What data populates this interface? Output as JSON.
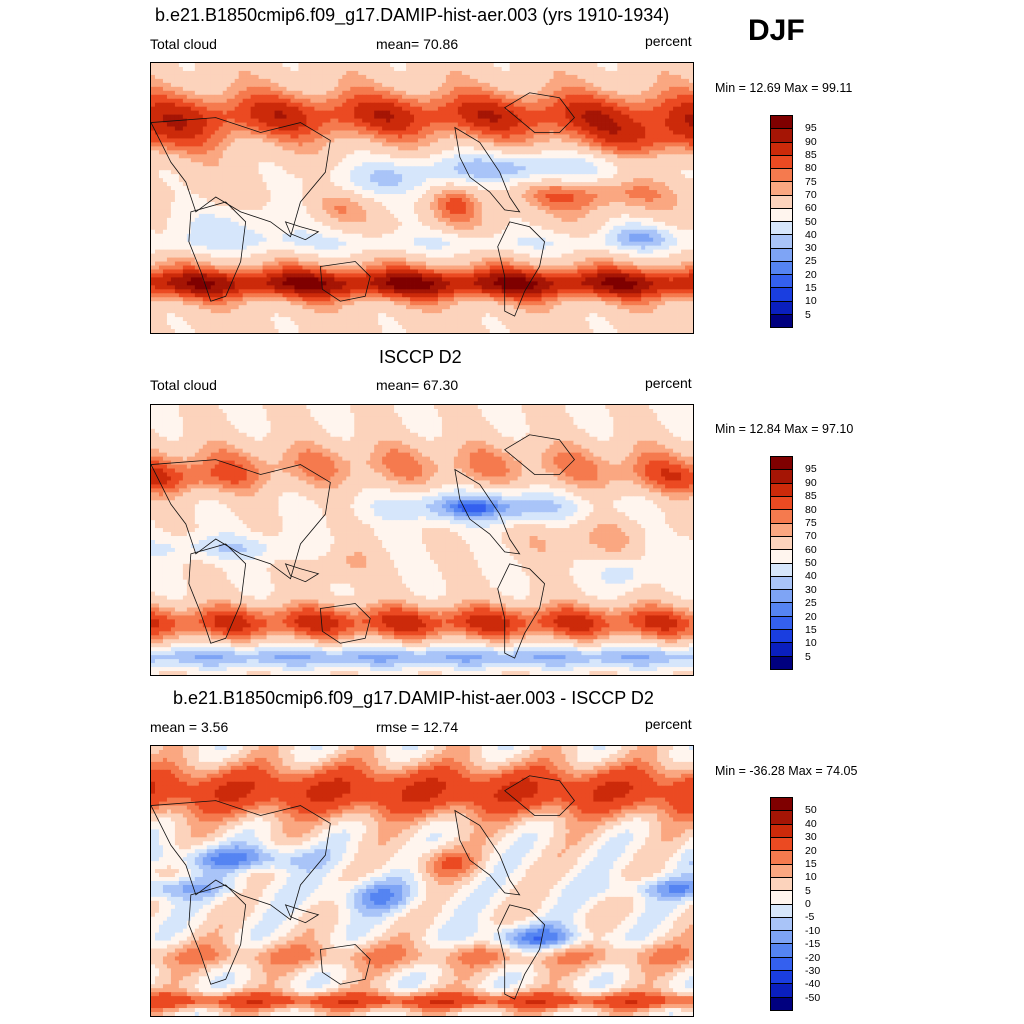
{
  "season": "DJF",
  "panels": [
    {
      "title": "b.e21.B1850cmip6.f09_g17.DAMIP-hist-aer.003 (yrs 1910-1934)",
      "left_label": "Total cloud",
      "center_label": "mean=  70.86",
      "right_label": "percent",
      "minmax": "Min =  12.69 Max =  99.11",
      "colorbar_ticks": [
        "95",
        "90",
        "85",
        "80",
        "75",
        "70",
        "60",
        "50",
        "40",
        "30",
        "25",
        "20",
        "15",
        "10",
        "5"
      ]
    },
    {
      "title": "ISCCP D2",
      "left_label": "Total cloud",
      "center_label": "mean=  67.30",
      "right_label": "percent",
      "minmax": "Min =  12.84 Max =  97.10",
      "colorbar_ticks": [
        "95",
        "90",
        "85",
        "80",
        "75",
        "70",
        "60",
        "50",
        "40",
        "30",
        "25",
        "20",
        "15",
        "10",
        "5"
      ]
    },
    {
      "title": "b.e21.B1850cmip6.f09_g17.DAMIP-hist-aer.003 - ISCCP D2",
      "left_label": "mean =   3.56",
      "center_label": "rmse =  12.74",
      "right_label": "percent",
      "minmax": "Min = -36.28 Max =  74.05",
      "colorbar_ticks": [
        "50",
        "40",
        "30",
        "20",
        "15",
        "10",
        "5",
        "0",
        "-5",
        "-10",
        "-15",
        "-20",
        "-30",
        "-40",
        "-50"
      ]
    }
  ],
  "chart_data": [
    {
      "type": "heatmap",
      "title": "b.e21.B1850cmip6.f09_g17.DAMIP-hist-aer.003 (yrs 1910-1934)",
      "variable": "Total cloud",
      "units": "percent",
      "mean": 70.86,
      "min": 12.69,
      "max": 99.11,
      "contour_levels": [
        5,
        10,
        15,
        20,
        25,
        30,
        40,
        50,
        60,
        70,
        75,
        80,
        85,
        90,
        95
      ],
      "colors": [
        "#00007f",
        "#0a1fbe",
        "#1a3ee0",
        "#3460ef",
        "#5584f2",
        "#7ea4f5",
        "#a9c4f8",
        "#d6e6fb",
        "#fff5ee",
        "#fcd3bc",
        "#faa781",
        "#f57a4e",
        "#eb4a22",
        "#cc2a0a",
        "#a51505",
        "#7f0000"
      ]
    },
    {
      "type": "heatmap",
      "title": "ISCCP D2",
      "variable": "Total cloud",
      "units": "percent",
      "mean": 67.3,
      "min": 12.84,
      "max": 97.1,
      "contour_levels": [
        5,
        10,
        15,
        20,
        25,
        30,
        40,
        50,
        60,
        70,
        75,
        80,
        85,
        90,
        95
      ],
      "colors": [
        "#00007f",
        "#0a1fbe",
        "#1a3ee0",
        "#3460ef",
        "#5584f2",
        "#7ea4f5",
        "#a9c4f8",
        "#d6e6fb",
        "#fff5ee",
        "#fcd3bc",
        "#faa781",
        "#f57a4e",
        "#eb4a22",
        "#cc2a0a",
        "#a51505",
        "#7f0000"
      ]
    },
    {
      "type": "heatmap",
      "title": "b.e21.B1850cmip6.f09_g17.DAMIP-hist-aer.003 - ISCCP D2",
      "units": "percent",
      "mean": 3.56,
      "rmse": 12.74,
      "min": -36.28,
      "max": 74.05,
      "contour_levels": [
        -50,
        -40,
        -30,
        -20,
        -15,
        -10,
        -5,
        0,
        5,
        10,
        15,
        20,
        30,
        40,
        50
      ],
      "colors": [
        "#00007f",
        "#0a1fbe",
        "#1a3ee0",
        "#3460ef",
        "#5584f2",
        "#7ea4f5",
        "#a9c4f8",
        "#d6e6fb",
        "#fff5ee",
        "#fcd3bc",
        "#faa781",
        "#f57a4e",
        "#eb4a22",
        "#cc2a0a",
        "#a51505",
        "#7f0000"
      ]
    }
  ]
}
